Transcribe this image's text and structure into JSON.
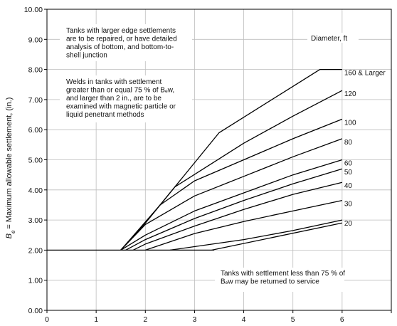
{
  "chart_data": {
    "type": "line",
    "ylabel": "= Maximum allowable settlement, (in.)",
    "ylabel_symbol": "B",
    "ylabel_subscript": "e",
    "xlim": [
      0,
      7
    ],
    "ylim": [
      0,
      10
    ],
    "x_ticks": [
      "0",
      "1",
      "2",
      "3",
      "4",
      "5",
      "6"
    ],
    "y_ticks": [
      "0.00",
      "1.00",
      "2.00",
      "3.00",
      "4.00",
      "5.00",
      "6.00",
      "7.00",
      "8.00",
      "9.00",
      "10.00"
    ],
    "grid": true,
    "baseline": {
      "x": [
        0,
        3.4
      ],
      "y": 2.0
    },
    "legend_title": "Diameter, ft",
    "series": [
      {
        "name": "160 & Larger",
        "points": [
          [
            1.5,
            2.0
          ],
          [
            2.0,
            2.9
          ],
          [
            3.5,
            5.9
          ],
          [
            5.55,
            8.0
          ],
          [
            6.0,
            8.0
          ]
        ]
      },
      {
        "name": "120",
        "points": [
          [
            1.5,
            2.0
          ],
          [
            2.0,
            2.9
          ],
          [
            2.6,
            4.1
          ],
          [
            4.0,
            5.55
          ],
          [
            5.0,
            6.45
          ],
          [
            6.0,
            7.3
          ]
        ]
      },
      {
        "name": "100",
        "points": [
          [
            1.5,
            2.0
          ],
          [
            2.3,
            3.5
          ],
          [
            3.0,
            4.3
          ],
          [
            4.0,
            5.0
          ],
          [
            5.0,
            5.7
          ],
          [
            6.0,
            6.35
          ]
        ]
      },
      {
        "name": "80",
        "points": [
          [
            1.5,
            2.0
          ],
          [
            2.0,
            2.85
          ],
          [
            3.0,
            3.8
          ],
          [
            4.0,
            4.45
          ],
          [
            5.0,
            5.1
          ],
          [
            6.0,
            5.7
          ]
        ]
      },
      {
        "name": "60",
        "points": [
          [
            1.5,
            2.0
          ],
          [
            2.0,
            2.5
          ],
          [
            3.0,
            3.3
          ],
          [
            4.0,
            3.9
          ],
          [
            5.0,
            4.5
          ],
          [
            6.0,
            5.0
          ]
        ]
      },
      {
        "name": "50",
        "points": [
          [
            1.6,
            2.0
          ],
          [
            2.0,
            2.35
          ],
          [
            3.0,
            3.05
          ],
          [
            4.0,
            3.65
          ],
          [
            5.0,
            4.2
          ],
          [
            6.0,
            4.7
          ]
        ]
      },
      {
        "name": "40",
        "points": [
          [
            1.75,
            2.0
          ],
          [
            2.0,
            2.2
          ],
          [
            3.0,
            2.8
          ],
          [
            4.0,
            3.35
          ],
          [
            5.0,
            3.85
          ],
          [
            6.0,
            4.25
          ]
        ]
      },
      {
        "name": "30",
        "points": [
          [
            2.0,
            2.0
          ],
          [
            3.0,
            2.55
          ],
          [
            4.0,
            2.95
          ],
          [
            5.0,
            3.3
          ],
          [
            6.0,
            3.65
          ]
        ]
      },
      {
        "name": "20",
        "points": [
          [
            2.5,
            2.0
          ],
          [
            4.0,
            2.35
          ],
          [
            5.0,
            2.65
          ],
          [
            6.0,
            3.0
          ]
        ]
      },
      {
        "name": "",
        "points": [
          [
            3.35,
            2.0
          ],
          [
            6.0,
            2.9
          ]
        ]
      }
    ],
    "annotations": [
      {
        "lines": [
          "Tanks with larger edge settlements",
          "are to be repaired, or have detailed",
          "analysis of bottom, and bottom-to-",
          "shell junction"
        ]
      },
      {
        "lines": [
          "Welds in tanks with settlement",
          "greater than or equal 75 % of Bₑw,",
          "and larger than 2 in., are to be",
          "examined with magnetic particle or",
          "liquid penetrant methods"
        ]
      },
      {
        "lines": [
          "Tanks with settlement less than 75 % of",
          "Bₑw may be returned to service"
        ]
      }
    ]
  }
}
